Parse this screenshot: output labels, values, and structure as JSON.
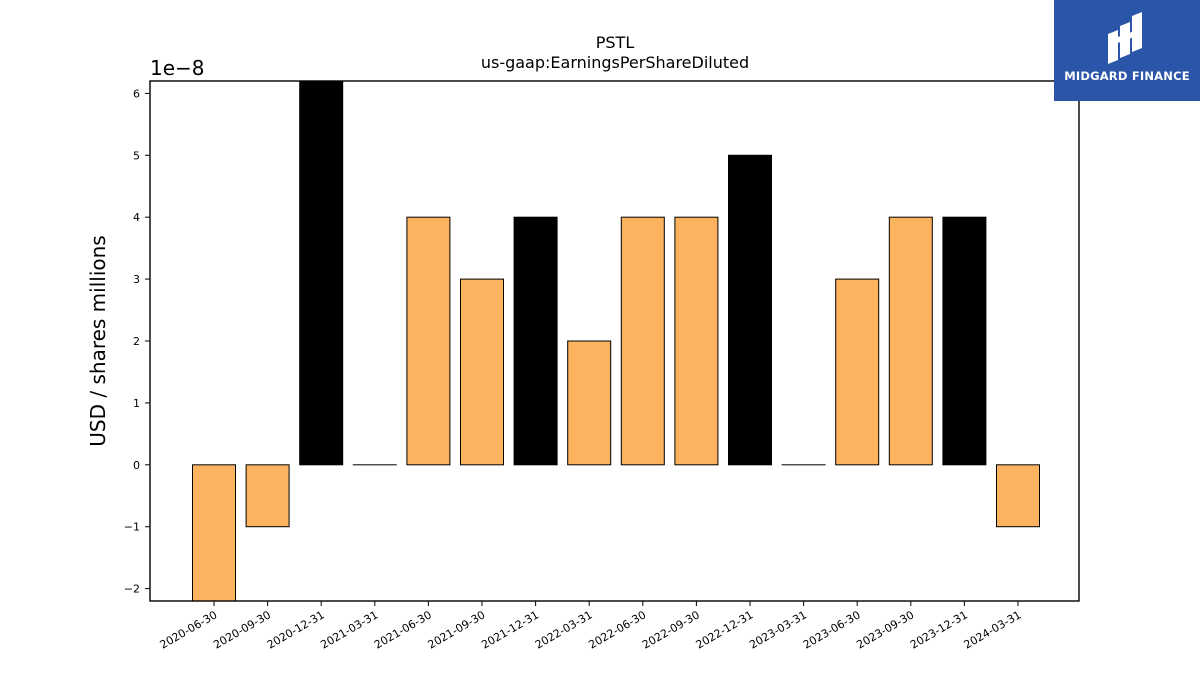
{
  "chart_data": {
    "type": "bar",
    "title": "PSTL",
    "subtitle": "us-gaap:EarningsPerShareDiluted",
    "ylabel": "USD / shares millions",
    "xlabel": "",
    "y_offset_label": "1e−8",
    "ylim": [
      -2.2,
      6.2
    ],
    "yticks": [
      -2,
      -1,
      0,
      1,
      2,
      3,
      4,
      5,
      6
    ],
    "ytick_labels": [
      "−2",
      "−1",
      "0",
      "1",
      "2",
      "3",
      "4",
      "5",
      "6"
    ],
    "categories": [
      "2020-06-30",
      "2020-09-30",
      "2020-12-31",
      "2021-03-31",
      "2021-06-30",
      "2021-09-30",
      "2021-12-31",
      "2022-03-31",
      "2022-06-30",
      "2022-09-30",
      "2022-12-31",
      "2023-03-31",
      "2023-06-30",
      "2023-09-30",
      "2023-12-31",
      "2024-03-31"
    ],
    "values": [
      -2.2,
      -1,
      6.2,
      0,
      4,
      3,
      4,
      2,
      4,
      4,
      5,
      0,
      3,
      4,
      4,
      -1
    ],
    "bar_colors": [
      "#fbb360",
      "#fbb360",
      "#000000",
      "#000000",
      "#fbb360",
      "#fbb360",
      "#000000",
      "#fbb360",
      "#fbb360",
      "#fbb360",
      "#000000",
      "#000000",
      "#fbb360",
      "#fbb360",
      "#000000",
      "#fbb360"
    ],
    "grid": false,
    "legend": "none"
  },
  "logo": {
    "text": "MIDGARD FINANCE",
    "background": "#2b55a8",
    "icon": "midgard-logo-icon"
  }
}
